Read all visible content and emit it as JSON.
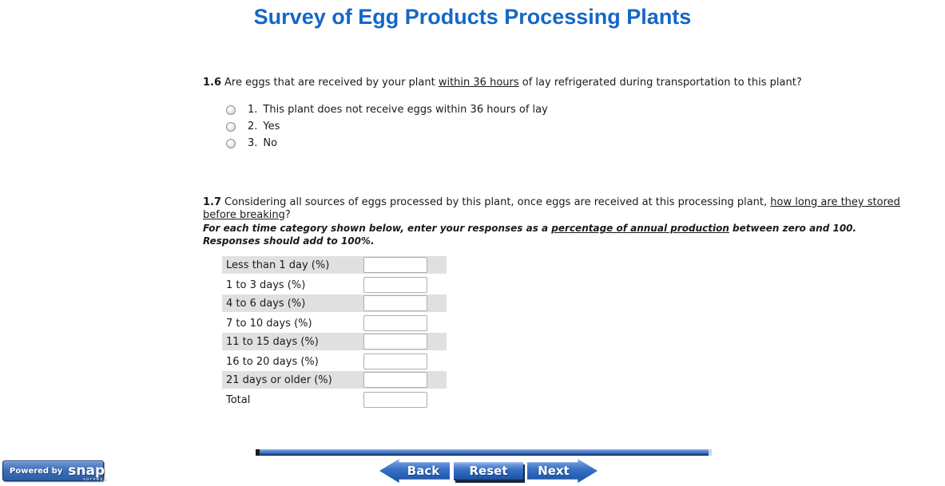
{
  "page": {
    "title": "Survey of Egg Products Processing Plants",
    "title_color": "#1467C8"
  },
  "q16": {
    "number": "1.6",
    "text_before": "Are eggs that are received by your plant ",
    "text_underlined": "within 36 hours",
    "text_after": " of lay refrigerated during transportation to this plant?",
    "options": [
      {
        "num": "1.",
        "label": "This plant does not receive eggs within 36 hours of lay",
        "selected": false
      },
      {
        "num": "2.",
        "label": "Yes",
        "selected": false
      },
      {
        "num": "3.",
        "label": "No",
        "selected": false
      }
    ]
  },
  "q17": {
    "number": "1.7",
    "line1_before": "Considering all sources of eggs processed by this plant, once eggs are received at this processing plant, ",
    "line1_underlined": "how long are they stored",
    "line2_underlined": "before breaking",
    "line2_after": "?",
    "note_before": "For each time category shown below, enter your responses as a ",
    "note_underlined": "percentage of annual production",
    "note_after": " between zero and 100.",
    "note_line2": "Responses should add to 100%.",
    "rows": [
      {
        "label": "Less than 1 day (%)",
        "value": ""
      },
      {
        "label": "1 to 3 days (%)",
        "value": ""
      },
      {
        "label": "4 to 6 days (%)",
        "value": ""
      },
      {
        "label": "7 to 10 days (%)",
        "value": ""
      },
      {
        "label": "11 to 15 days (%)",
        "value": ""
      },
      {
        "label": "16 to 20 days (%)",
        "value": ""
      },
      {
        "label": "21 days or older (%)",
        "value": ""
      },
      {
        "label": "Total",
        "value": ""
      }
    ]
  },
  "nav": {
    "back_label": "Back",
    "reset_label": "Reset",
    "next_label": "Next",
    "bar_color": "#3A6CBE",
    "button_color": "#2760B4",
    "back_icon": "arrow-left",
    "next_icon": "arrow-right"
  },
  "footer": {
    "powered_by": "Powered by",
    "brand": "snap",
    "brand_sub": "surveys"
  }
}
